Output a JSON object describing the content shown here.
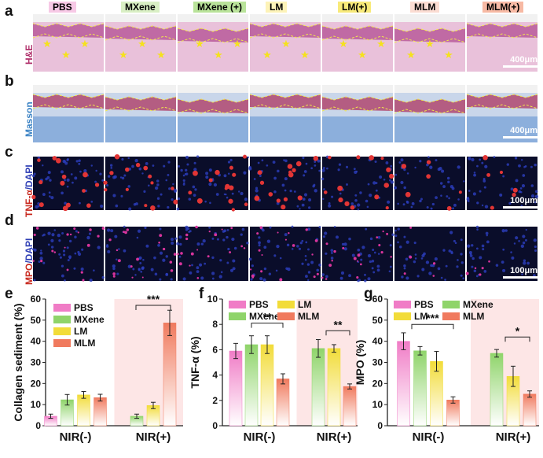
{
  "panels": {
    "a": {
      "letter": "a",
      "row_label_1": "H&E"
    },
    "b": {
      "letter": "b",
      "row_label_1": "Masson"
    },
    "c": {
      "letter": "c",
      "row_label_1": "TNF-α",
      "row_label_2": "/DAPI"
    },
    "d": {
      "letter": "d",
      "row_label_1": "MPO",
      "row_label_2": "/DAPI"
    },
    "e": {
      "letter": "e"
    },
    "f": {
      "letter": "f"
    },
    "g": {
      "letter": "g"
    }
  },
  "groups": [
    {
      "label": "PBS",
      "bg": "#f7c9e6"
    },
    {
      "label": "MXene",
      "bg": "#d9efc4"
    },
    {
      "label": "MXene (+)",
      "bg": "#b9e39a"
    },
    {
      "label": "LM",
      "bg": "#fdf3b8"
    },
    {
      "label": "LM(+)",
      "bg": "#f8ea7a"
    },
    {
      "label": "MLM",
      "bg": "#fbdcd2"
    },
    {
      "label": "MLM(+)",
      "bg": "#f7b9a4"
    }
  ],
  "scale_bars": {
    "he": "400μm",
    "masson": "400μm",
    "tnf": "100μm",
    "mpo": "100μm"
  },
  "colors": {
    "pbs": "#f07cc6",
    "mxene": "#8fd46a",
    "lm": "#f2dc39",
    "mlm": "#f07a5e",
    "tissue_pink": "#e7b4d0",
    "fluor_bg": "#0a0d2a"
  },
  "chart_data": [
    {
      "type": "bar",
      "panel": "e",
      "ylabel": "Collagen sediment (%)",
      "ylim": [
        0,
        60
      ],
      "yticks": [
        0,
        10,
        20,
        30,
        40,
        50,
        60
      ],
      "categories": [
        "NIR(-)",
        "NIR(+)"
      ],
      "legend": [
        "PBS",
        "MXene",
        "LM",
        "MLM"
      ],
      "series": [
        {
          "name": "PBS",
          "values": [
            4.5,
            null
          ],
          "errors": [
            1,
            null
          ]
        },
        {
          "name": "MXene",
          "values": [
            12.3,
            4.5
          ],
          "errors": [
            2.5,
            1
          ]
        },
        {
          "name": "LM",
          "values": [
            14.6,
            9.6
          ],
          "errors": [
            1.6,
            1.5
          ]
        },
        {
          "name": "MLM",
          "values": [
            13.3,
            48.7
          ],
          "errors": [
            1.6,
            6
          ]
        }
      ],
      "annotations": [
        "***"
      ]
    },
    {
      "type": "bar",
      "panel": "f",
      "ylabel": "TNF-α (%)",
      "ylim": [
        0,
        10
      ],
      "yticks": [
        0,
        2,
        4,
        6,
        8,
        10
      ],
      "categories": [
        "NIR(-)",
        "NIR(+)"
      ],
      "legend": [
        "PBS",
        "LM",
        "MXene",
        "MLM"
      ],
      "series": [
        {
          "name": "PBS",
          "values": [
            5.9,
            null
          ],
          "errors": [
            0.6,
            null
          ]
        },
        {
          "name": "MXene",
          "values": [
            6.4,
            6.1
          ],
          "errors": [
            0.7,
            0.7
          ]
        },
        {
          "name": "LM",
          "values": [
            6.4,
            6.1
          ],
          "errors": [
            0.7,
            0.3
          ]
        },
        {
          "name": "MLM",
          "values": [
            3.7,
            3.1
          ],
          "errors": [
            0.4,
            0.2
          ]
        }
      ],
      "annotations": [
        "**",
        "**"
      ]
    },
    {
      "type": "bar",
      "panel": "g",
      "ylabel": "MPO (%)",
      "ylim": [
        0,
        60
      ],
      "yticks": [
        0,
        10,
        20,
        30,
        40,
        50,
        60
      ],
      "categories": [
        "NIR(-)",
        "NIR(+)"
      ],
      "legend": [
        "PBS",
        "MXene",
        "LM",
        "MLM"
      ],
      "series": [
        {
          "name": "PBS",
          "values": [
            40,
            null
          ],
          "errors": [
            4,
            null
          ]
        },
        {
          "name": "MXene",
          "values": [
            35.5,
            34.3
          ],
          "errors": [
            2,
            1.8
          ]
        },
        {
          "name": "LM",
          "values": [
            30.5,
            23.4
          ],
          "errors": [
            4.7,
            4.8
          ]
        },
        {
          "name": "MLM",
          "values": [
            12.2,
            15
          ],
          "errors": [
            1.5,
            1.5
          ]
        }
      ],
      "annotations": [
        "***",
        "*"
      ]
    }
  ]
}
